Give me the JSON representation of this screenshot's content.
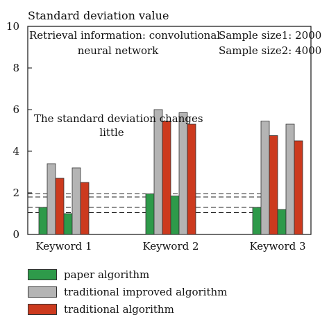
{
  "chart_data": {
    "type": "bar",
    "ylabel": "Standard deviation value",
    "ylim": [
      0,
      10
    ],
    "yticks": [
      0,
      2,
      4,
      6,
      8,
      10
    ],
    "categories": [
      "Keyword 1",
      "Keyword 2",
      "Keyword 3"
    ],
    "groups": [
      {
        "category": "Keyword 1",
        "series_order": [
          "paper algorithm",
          "traditional improved algorithm",
          "traditional algorithm",
          "paper algorithm",
          "traditional improved algorithm",
          "traditional algorithm"
        ],
        "values": [
          1.3,
          3.4,
          2.7,
          1.0,
          3.2,
          2.5
        ]
      },
      {
        "category": "Keyword 2",
        "series_order": [
          "paper algorithm",
          "traditional improved algorithm",
          "traditional algorithm",
          "paper algorithm",
          "traditional improved algorithm",
          "traditional algorithm"
        ],
        "values": [
          1.95,
          6.0,
          5.45,
          1.85,
          5.85,
          5.3
        ]
      },
      {
        "category": "Keyword 3",
        "series_order": [
          "paper algorithm",
          "traditional improved algorithm",
          "traditional algorithm",
          "paper algorithm",
          "traditional improved algorithm",
          "traditional algorithm"
        ],
        "values": [
          1.3,
          5.45,
          4.75,
          1.2,
          5.3,
          4.5
        ]
      }
    ],
    "series": [
      {
        "name": "paper algorithm",
        "color": "#2e9a4a"
      },
      {
        "name": "traditional improved algorithm",
        "color": "#b4b4b4"
      },
      {
        "name": "traditional algorithm",
        "color": "#cc3a1e"
      }
    ],
    "reference_lines": [
      1.95,
      1.8,
      1.3,
      1.05
    ],
    "annotations": {
      "retrieval": [
        "Retrieval information: convolutional",
        "neural network"
      ],
      "sample": [
        "Sample size1: 2000",
        "Sample size2: 4000"
      ],
      "note": [
        "The standard deviation changes",
        "little"
      ]
    },
    "legend_placement": "bottom"
  }
}
